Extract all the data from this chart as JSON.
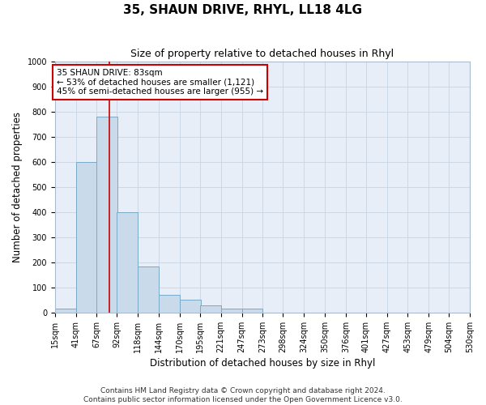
{
  "title": "35, SHAUN DRIVE, RHYL, LL18 4LG",
  "subtitle": "Size of property relative to detached houses in Rhyl",
  "xlabel": "Distribution of detached houses by size in Rhyl",
  "ylabel": "Number of detached properties",
  "bins": [
    15,
    41,
    67,
    92,
    118,
    144,
    170,
    195,
    221,
    247,
    273,
    298,
    324,
    350,
    376,
    401,
    427,
    453,
    479,
    504,
    530
  ],
  "counts": [
    15,
    600,
    780,
    400,
    185,
    70,
    50,
    30,
    15,
    15,
    0,
    0,
    0,
    0,
    0,
    0,
    0,
    0,
    0,
    0
  ],
  "bar_color": "#c9daea",
  "bar_edge_color": "#7aaac8",
  "property_line_x": 83,
  "property_line_color": "#cc0000",
  "annotation_text": "35 SHAUN DRIVE: 83sqm\n← 53% of detached houses are smaller (1,121)\n45% of semi-detached houses are larger (955) →",
  "annotation_box_color": "#ffffff",
  "annotation_box_edge_color": "#cc0000",
  "ylim": [
    0,
    1000
  ],
  "yticks": [
    0,
    100,
    200,
    300,
    400,
    500,
    600,
    700,
    800,
    900,
    1000
  ],
  "grid_color": "#c8d4e4",
  "background_color": "#e8eef8",
  "footer_line1": "Contains HM Land Registry data © Crown copyright and database right 2024.",
  "footer_line2": "Contains public sector information licensed under the Open Government Licence v3.0.",
  "title_fontsize": 11,
  "subtitle_fontsize": 9,
  "xlabel_fontsize": 8.5,
  "ylabel_fontsize": 8.5,
  "tick_fontsize": 7,
  "footer_fontsize": 6.5,
  "annotation_fontsize": 7.5
}
